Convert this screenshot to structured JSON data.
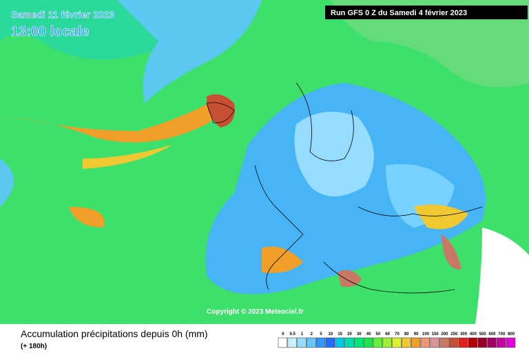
{
  "header": {
    "date": "Samedi 11 février 2023",
    "time": "13:00 locale",
    "run": "Run GFS 0 Z du Samedi 4 février 2023"
  },
  "copyright": "Copyright © 2023 Meteociel.fr",
  "footer": {
    "title": "Accumulation précipitations depuis 0h (mm)",
    "lead": "(+ 180h)"
  },
  "legend": {
    "labels": [
      0,
      0.5,
      1,
      2,
      5,
      10,
      15,
      20,
      30,
      40,
      50,
      60,
      70,
      80,
      90,
      100,
      150,
      200,
      250,
      300,
      400,
      500,
      600,
      700,
      800
    ],
    "colors": [
      "#ffffff",
      "#c8f0ff",
      "#96dcff",
      "#64c8ff",
      "#3296ff",
      "#1e6eff",
      "#00c8e6",
      "#00dcaa",
      "#00e678",
      "#1ee650",
      "#64f03c",
      "#a0f032",
      "#dcf032",
      "#f0c832",
      "#f0a028",
      "#f09678",
      "#dc9696",
      "#c87864",
      "#c85032",
      "#e61e1e",
      "#b40000",
      "#960028",
      "#a00064",
      "#c800a0",
      "#e600dc"
    ]
  }
}
